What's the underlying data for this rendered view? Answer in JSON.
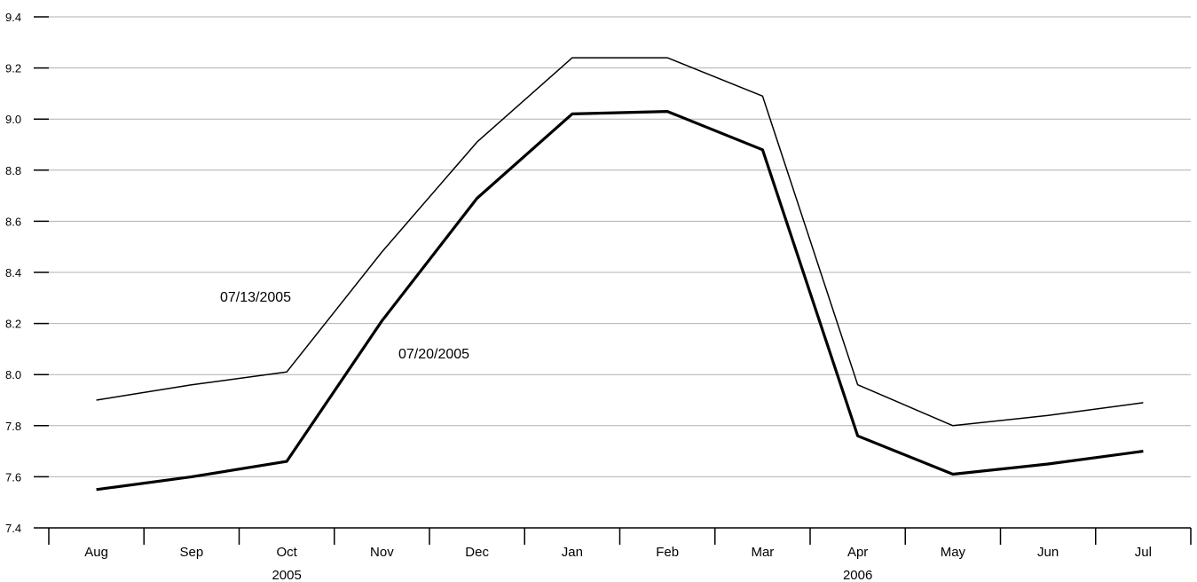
{
  "chart_data": {
    "type": "line",
    "categories": [
      "Aug",
      "Sep",
      "Oct",
      "Nov",
      "Dec",
      "Jan",
      "Feb",
      "Mar",
      "Apr",
      "May",
      "Jun",
      "Jul"
    ],
    "year_labels": [
      {
        "label": "2005",
        "category": "Oct"
      },
      {
        "label": "2006",
        "category": "Apr"
      }
    ],
    "ylim": [
      7.4,
      9.4
    ],
    "yticks": [
      "7.4",
      "7.6",
      "7.8",
      "8.0",
      "8.2",
      "8.4",
      "8.6",
      "8.8",
      "9.0",
      "9.2",
      "9.4"
    ],
    "grid": true,
    "series": [
      {
        "name": "07/13/2005",
        "values": [
          7.9,
          7.96,
          8.01,
          8.48,
          8.91,
          9.24,
          9.24,
          9.09,
          7.96,
          7.8,
          7.84,
          7.89
        ],
        "color": "#000000",
        "weight": "thin"
      },
      {
        "name": "07/20/2005",
        "values": [
          7.55,
          7.6,
          7.66,
          8.21,
          8.69,
          9.02,
          9.03,
          8.88,
          7.76,
          7.61,
          7.65,
          7.7
        ],
        "color": "#000000",
        "weight": "thick"
      }
    ],
    "title": "",
    "xlabel": "",
    "ylabel": ""
  }
}
